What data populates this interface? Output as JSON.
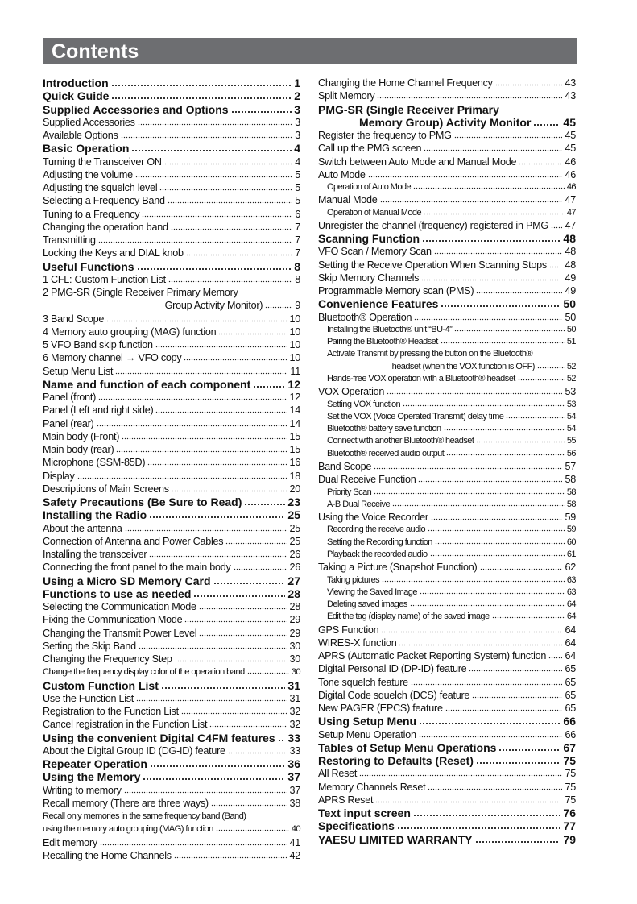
{
  "title": "Contents",
  "left": [
    {
      "t": "Introduction",
      "p": "1",
      "k": "h"
    },
    {
      "t": "Quick Guide",
      "p": "2",
      "k": "h"
    },
    {
      "t": "Supplied Accessories and Options",
      "p": "3",
      "k": "h"
    },
    {
      "t": "Supplied Accessories",
      "p": "3",
      "k": "n"
    },
    {
      "t": "Available Options",
      "p": "3",
      "k": "n"
    },
    {
      "t": "Basic Operation",
      "p": "4",
      "k": "h"
    },
    {
      "t": "Turning the Transceiver ON",
      "p": "4",
      "k": "n"
    },
    {
      "t": "Adjusting the volume",
      "p": "5",
      "k": "n"
    },
    {
      "t": "Adjusting the squelch level",
      "p": "5",
      "k": "n"
    },
    {
      "t": "Selecting a Frequency Band",
      "p": "5",
      "k": "n"
    },
    {
      "t": "Tuning to a Frequency",
      "p": "6",
      "k": "n"
    },
    {
      "t": "Changing the operation band",
      "p": "7",
      "k": "n"
    },
    {
      "t": "Transmitting",
      "p": "7",
      "k": "n"
    },
    {
      "t": "Locking the Keys and DIAL knob",
      "p": "7",
      "k": "n"
    },
    {
      "t": "Useful Functions",
      "p": "8",
      "k": "h"
    },
    {
      "t": "1 CFL: Custom Function List",
      "p": "8",
      "k": "n"
    },
    {
      "t": "2 PMG-SR (Single Receiver Primary Memory",
      "p": "",
      "k": "n"
    },
    {
      "t": "Group Activity Monitor)",
      "p": "9",
      "k": "n",
      "cont": true
    },
    {
      "t": "3 Band Scope",
      "p": "10",
      "k": "n"
    },
    {
      "t": "4 Memory auto grouping (MAG) function",
      "p": "10",
      "k": "n"
    },
    {
      "t": "5 VFO Band skip function",
      "p": "10",
      "k": "n"
    },
    {
      "t": "6 Memory channel → VFO copy",
      "p": "10",
      "k": "n"
    },
    {
      "t": "Setup Menu List",
      "p": "11",
      "k": "n"
    },
    {
      "t": "Name and function of each component",
      "p": "12",
      "k": "h"
    },
    {
      "t": "Panel (front)",
      "p": "12",
      "k": "n"
    },
    {
      "t": "Panel (Left and right side)",
      "p": "14",
      "k": "n"
    },
    {
      "t": "Panel (rear)",
      "p": "14",
      "k": "n"
    },
    {
      "t": "Main body (Front)",
      "p": "15",
      "k": "n"
    },
    {
      "t": "Main body (rear)",
      "p": "15",
      "k": "n"
    },
    {
      "t": "Microphone (SSM-85D)",
      "p": "16",
      "k": "n"
    },
    {
      "t": "Display",
      "p": "18",
      "k": "n"
    },
    {
      "t": "Descriptions of Main Screens",
      "p": "20",
      "k": "n"
    },
    {
      "t": "Safety Precautions (Be Sure to Read)",
      "p": "23",
      "k": "h"
    },
    {
      "t": "Installing the Radio",
      "p": "25",
      "k": "h"
    },
    {
      "t": "About the antenna",
      "p": "25",
      "k": "n"
    },
    {
      "t": "Connection of Antenna and Power Cables",
      "p": "25",
      "k": "n"
    },
    {
      "t": "Installing the transceiver",
      "p": "26",
      "k": "n"
    },
    {
      "t": "Connecting the front panel to the main body",
      "p": "26",
      "k": "n"
    },
    {
      "t": "Using a Micro SD Memory Card",
      "p": "27",
      "k": "h"
    },
    {
      "t": "Functions to use as needed",
      "p": "28",
      "k": "h"
    },
    {
      "t": "Selecting the Communication Mode",
      "p": "28",
      "k": "n"
    },
    {
      "t": "Fixing the Communication Mode",
      "p": "29",
      "k": "n"
    },
    {
      "t": "Changing the Transmit Power Level",
      "p": "29",
      "k": "n"
    },
    {
      "t": "Setting the Skip Band",
      "p": "30",
      "k": "n"
    },
    {
      "t": "Changing the Frequency Step",
      "p": "30",
      "k": "n"
    },
    {
      "t": "Change the frequency display color of the operation band",
      "p": "30",
      "k": "c"
    },
    {
      "t": "Custom Function List",
      "p": "31",
      "k": "h"
    },
    {
      "t": "Use the Function List",
      "p": "31",
      "k": "n"
    },
    {
      "t": "Registration to the Function List",
      "p": "32",
      "k": "n"
    },
    {
      "t": "Cancel registration in the Function List",
      "p": "32",
      "k": "n"
    },
    {
      "t": "Using the convenient Digital C4FM features",
      "p": "33",
      "k": "h"
    },
    {
      "t": "About the Digital Group ID (DG-ID) feature",
      "p": "33",
      "k": "n"
    },
    {
      "t": "Repeater Operation",
      "p": "36",
      "k": "h"
    },
    {
      "t": "Using the Memory",
      "p": "37",
      "k": "h"
    },
    {
      "t": "Writing to memory",
      "p": "37",
      "k": "n"
    },
    {
      "t": "Recall memory (There are three ways)",
      "p": "38",
      "k": "n"
    },
    {
      "t": "Recall only memories in the same frequency band (Band)",
      "p": "",
      "k": "c"
    },
    {
      "t": "using the memory auto grouping (MAG) function",
      "p": "40",
      "k": "c"
    },
    {
      "t": "Edit memory",
      "p": "41",
      "k": "n"
    },
    {
      "t": "Recalling the Home Channels",
      "p": "42",
      "k": "n"
    }
  ],
  "right": [
    {
      "t": "Changing the Home Channel Frequency",
      "p": "43",
      "k": "n"
    },
    {
      "t": "Split Memory",
      "p": "43",
      "k": "n"
    },
    {
      "t": "PMG-SR (Single Receiver Primary",
      "p": "",
      "k": "h"
    },
    {
      "t": "Memory Group) Activity Monitor",
      "p": "45",
      "k": "h",
      "cont": true
    },
    {
      "t": "Register the frequency to PMG",
      "p": "45",
      "k": "n"
    },
    {
      "t": "Call up the PMG screen",
      "p": "45",
      "k": "n"
    },
    {
      "t": "Switch between Auto Mode and Manual Mode",
      "p": "46",
      "k": "n"
    },
    {
      "t": "Auto Mode",
      "p": "46",
      "k": "n"
    },
    {
      "t": "Operation of Auto Mode",
      "p": "46",
      "k": "s"
    },
    {
      "t": "Manual Mode",
      "p": "47",
      "k": "n"
    },
    {
      "t": "Operation of Manual Mode",
      "p": "47",
      "k": "s"
    },
    {
      "t": "Unregister the channel (frequency) registered in PMG",
      "p": "47",
      "k": "n"
    },
    {
      "t": "Scanning Function",
      "p": "48",
      "k": "h"
    },
    {
      "t": "VFO Scan / Memory Scan",
      "p": "48",
      "k": "n"
    },
    {
      "t": "Setting the Receive Operation When Scanning Stops",
      "p": "48",
      "k": "n"
    },
    {
      "t": "Skip Memory Channels",
      "p": "49",
      "k": "n"
    },
    {
      "t": "Programmable Memory scan (PMS)",
      "p": "49",
      "k": "n"
    },
    {
      "t": "Convenience Features",
      "p": "50",
      "k": "h"
    },
    {
      "t": "Bluetooth® Operation",
      "p": "50",
      "k": "n"
    },
    {
      "t": "Installing the Bluetooth® unit “BU-4”",
      "p": "50",
      "k": "s"
    },
    {
      "t": "Pairing the Bluetooth® Headset",
      "p": "51",
      "k": "s"
    },
    {
      "t": "Activate Transmit by pressing the button on the Bluetooth®",
      "p": "",
      "k": "s"
    },
    {
      "t": "headset (when the VOX function is OFF)",
      "p": "52",
      "k": "s",
      "cont": true
    },
    {
      "t": "Hands-free VOX operation with a Bluetooth® headset",
      "p": "52",
      "k": "s"
    },
    {
      "t": "VOX Operation",
      "p": "53",
      "k": "n"
    },
    {
      "t": "Setting VOX function",
      "p": "53",
      "k": "s"
    },
    {
      "t": "Set the VOX (Voice Operated Transmit) delay time",
      "p": "54",
      "k": "s"
    },
    {
      "t": "Bluetooth® battery save function",
      "p": "54",
      "k": "s"
    },
    {
      "t": "Connect with another Bluetooth® headset",
      "p": "55",
      "k": "s"
    },
    {
      "t": "Bluetooth® received audio output",
      "p": "56",
      "k": "s"
    },
    {
      "t": "Band Scope",
      "p": "57",
      "k": "n"
    },
    {
      "t": "Dual Receive Function",
      "p": "58",
      "k": "n"
    },
    {
      "t": "Priority Scan",
      "p": "58",
      "k": "s"
    },
    {
      "t": "A-B Dual Receive",
      "p": "58",
      "k": "s"
    },
    {
      "t": "Using the Voice Recorder",
      "p": "59",
      "k": "n"
    },
    {
      "t": "Recording the receive audio",
      "p": "59",
      "k": "s"
    },
    {
      "t": "Setting the Recording function",
      "p": "60",
      "k": "s"
    },
    {
      "t": "Playback the recorded audio",
      "p": "61",
      "k": "s"
    },
    {
      "t": "Taking a Picture (Snapshot Function)",
      "p": "62",
      "k": "n"
    },
    {
      "t": "Taking pictures",
      "p": "63",
      "k": "s"
    },
    {
      "t": "Viewing the Saved Image",
      "p": "63",
      "k": "s"
    },
    {
      "t": "Deleting saved images",
      "p": "64",
      "k": "s"
    },
    {
      "t": "Edit the tag (display name) of the saved image",
      "p": "64",
      "k": "s"
    },
    {
      "t": "GPS Function",
      "p": "64",
      "k": "n"
    },
    {
      "t": "WIRES-X function",
      "p": "64",
      "k": "n"
    },
    {
      "t": "APRS (Automatic Packet Reporting System) function",
      "p": "64",
      "k": "n"
    },
    {
      "t": "Digital Personal ID (DP-ID) feature",
      "p": "65",
      "k": "n"
    },
    {
      "t": "Tone squelch feature",
      "p": "65",
      "k": "n"
    },
    {
      "t": "Digital Code squelch (DCS) feature",
      "p": "65",
      "k": "n"
    },
    {
      "t": "New PAGER (EPCS) feature",
      "p": "65",
      "k": "n"
    },
    {
      "t": "Using Setup Menu",
      "p": "66",
      "k": "h"
    },
    {
      "t": "Setup Menu Operation",
      "p": "66",
      "k": "n"
    },
    {
      "t": "Tables of Setup Menu Operations",
      "p": "67",
      "k": "h"
    },
    {
      "t": "Restoring to Defaults (Reset)",
      "p": "75",
      "k": "h"
    },
    {
      "t": "All Reset",
      "p": "75",
      "k": "n"
    },
    {
      "t": "Memory Channels Reset",
      "p": "75",
      "k": "n"
    },
    {
      "t": "APRS Reset",
      "p": "75",
      "k": "n"
    },
    {
      "t": "Text input screen",
      "p": "76",
      "k": "h"
    },
    {
      "t": "Specifications",
      "p": "77",
      "k": "h"
    },
    {
      "t": "YAESU LIMITED WARRANTY",
      "p": "79",
      "k": "h"
    }
  ]
}
